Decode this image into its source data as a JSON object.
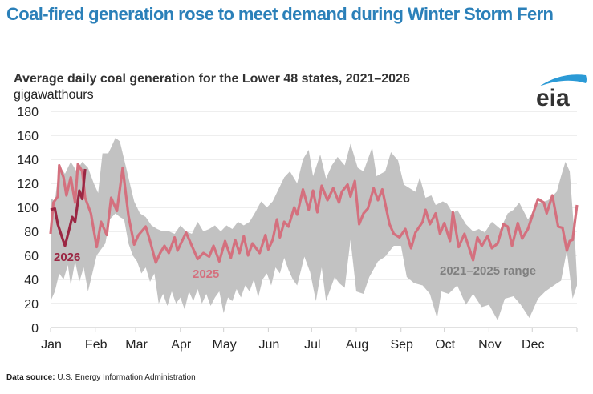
{
  "title": "Coal-fired generation rose to meet demand during Winter Storm Fern",
  "logo_text": "eia",
  "source_label": "Data source:",
  "source_text": "U.S. Energy Information Administration",
  "colors": {
    "title": "#2b80b9",
    "series_2025": "#d4707e",
    "series_2026": "#9b2743",
    "range": "#c2c2c2",
    "grid": "#dcdcdc"
  },
  "chart_data": {
    "type": "line",
    "title": "Average daily coal generation for the Lower 48 states, 2021–2026",
    "ylabel": "gigawatthours",
    "xlabel": "",
    "x_unit": "day of year",
    "xlim": [
      0,
      365
    ],
    "ylim": [
      0,
      180
    ],
    "yticks": [
      0,
      20,
      40,
      60,
      80,
      100,
      120,
      140,
      160,
      180
    ],
    "grid": true,
    "xtick_labels": [
      {
        "label": "Jan",
        "day": 0
      },
      {
        "label": "Feb",
        "day": 31
      },
      {
        "label": "Mar",
        "day": 59
      },
      {
        "label": "Apr",
        "day": 90
      },
      {
        "label": "May",
        "day": 120
      },
      {
        "label": "Jun",
        "day": 151
      },
      {
        "label": "Jul",
        "day": 181
      },
      {
        "label": "Aug",
        "day": 212
      },
      {
        "label": "Sep",
        "day": 243
      },
      {
        "label": "Oct",
        "day": 273
      },
      {
        "label": "Nov",
        "day": 304
      },
      {
        "label": "Dec",
        "day": 334
      }
    ],
    "annotations": {
      "label_2026": "2026",
      "label_2025": "2025",
      "label_range": "2021–2025 range"
    },
    "range": {
      "name": "2021–2025 range",
      "upper": [
        [
          0,
          108
        ],
        [
          3,
          105
        ],
        [
          6,
          135
        ],
        [
          10,
          128
        ],
        [
          14,
          138
        ],
        [
          18,
          130
        ],
        [
          22,
          138
        ],
        [
          26,
          133
        ],
        [
          30,
          120
        ],
        [
          33,
          112
        ],
        [
          36,
          145
        ],
        [
          40,
          145
        ],
        [
          42,
          150
        ],
        [
          45,
          158
        ],
        [
          48,
          155
        ],
        [
          52,
          135
        ],
        [
          55,
          120
        ],
        [
          58,
          105
        ],
        [
          62,
          95
        ],
        [
          66,
          92
        ],
        [
          70,
          85
        ],
        [
          74,
          82
        ],
        [
          78,
          80
        ],
        [
          82,
          80
        ],
        [
          86,
          78
        ],
        [
          90,
          85
        ],
        [
          94,
          80
        ],
        [
          98,
          78
        ],
        [
          102,
          88
        ],
        [
          106,
          80
        ],
        [
          110,
          82
        ],
        [
          114,
          85
        ],
        [
          118,
          80
        ],
        [
          122,
          85
        ],
        [
          126,
          82
        ],
        [
          130,
          88
        ],
        [
          134,
          85
        ],
        [
          138,
          88
        ],
        [
          142,
          96
        ],
        [
          146,
          105
        ],
        [
          150,
          100
        ],
        [
          154,
          105
        ],
        [
          158,
          115
        ],
        [
          162,
          125
        ],
        [
          166,
          130
        ],
        [
          171,
          120
        ],
        [
          175,
          140
        ],
        [
          179,
          148
        ],
        [
          182,
          126
        ],
        [
          187,
          144
        ],
        [
          191,
          124
        ],
        [
          195,
          135
        ],
        [
          199,
          142
        ],
        [
          204,
          135
        ],
        [
          208,
          153
        ],
        [
          213,
          133
        ],
        [
          217,
          130
        ],
        [
          223,
          150
        ],
        [
          226,
          126
        ],
        [
          232,
          130
        ],
        [
          236,
          146
        ],
        [
          241,
          139
        ],
        [
          245,
          119
        ],
        [
          249,
          116
        ],
        [
          253,
          113
        ],
        [
          256,
          125
        ],
        [
          260,
          108
        ],
        [
          264,
          110
        ],
        [
          267,
          102
        ],
        [
          272,
          105
        ],
        [
          275,
          103
        ],
        [
          279,
          95
        ],
        [
          282,
          98
        ],
        [
          288,
          86
        ],
        [
          293,
          80
        ],
        [
          297,
          82
        ],
        [
          301,
          79
        ],
        [
          306,
          88
        ],
        [
          312,
          82
        ],
        [
          317,
          95
        ],
        [
          321,
          98
        ],
        [
          325,
          104
        ],
        [
          331,
          90
        ],
        [
          338,
          103
        ],
        [
          345,
          106
        ],
        [
          351,
          113
        ],
        [
          354,
          126
        ],
        [
          357,
          138
        ],
        [
          360,
          130
        ],
        [
          364,
          64
        ],
        [
          365,
          41
        ]
      ],
      "lower": [
        [
          0,
          22
        ],
        [
          3,
          30
        ],
        [
          6,
          45
        ],
        [
          9,
          40
        ],
        [
          12,
          52
        ],
        [
          14,
          35
        ],
        [
          17,
          55
        ],
        [
          20,
          38
        ],
        [
          23,
          50
        ],
        [
          26,
          30
        ],
        [
          29,
          45
        ],
        [
          32,
          60
        ],
        [
          35,
          65
        ],
        [
          38,
          70
        ],
        [
          41,
          90
        ],
        [
          45,
          95
        ],
        [
          48,
          92
        ],
        [
          51,
          90
        ],
        [
          54,
          70
        ],
        [
          57,
          60
        ],
        [
          60,
          55
        ],
        [
          63,
          45
        ],
        [
          66,
          50
        ],
        [
          69,
          38
        ],
        [
          72,
          45
        ],
        [
          75,
          20
        ],
        [
          78,
          28
        ],
        [
          81,
          18
        ],
        [
          84,
          30
        ],
        [
          87,
          20
        ],
        [
          90,
          25
        ],
        [
          93,
          15
        ],
        [
          96,
          30
        ],
        [
          99,
          22
        ],
        [
          102,
          32
        ],
        [
          105,
          20
        ],
        [
          108,
          28
        ],
        [
          111,
          18
        ],
        [
          114,
          25
        ],
        [
          117,
          30
        ],
        [
          120,
          12
        ],
        [
          123,
          25
        ],
        [
          126,
          22
        ],
        [
          129,
          32
        ],
        [
          132,
          25
        ],
        [
          135,
          35
        ],
        [
          138,
          30
        ],
        [
          141,
          40
        ],
        [
          144,
          25
        ],
        [
          147,
          40
        ],
        [
          150,
          45
        ],
        [
          153,
          35
        ],
        [
          156,
          50
        ],
        [
          159,
          45
        ],
        [
          162,
          58
        ],
        [
          165,
          48
        ],
        [
          168,
          40
        ],
        [
          171,
          35
        ],
        [
          176,
          59
        ],
        [
          180,
          46
        ],
        [
          184,
          22
        ],
        [
          188,
          50
        ],
        [
          191,
          22
        ],
        [
          197,
          42
        ],
        [
          200,
          37
        ],
        [
          204,
          33
        ],
        [
          208,
          73
        ],
        [
          212,
          30
        ],
        [
          217,
          28
        ],
        [
          221,
          42
        ],
        [
          227,
          55
        ],
        [
          232,
          59
        ],
        [
          238,
          68
        ],
        [
          243,
          68
        ],
        [
          247,
          42
        ],
        [
          252,
          37
        ],
        [
          258,
          35
        ],
        [
          263,
          28
        ],
        [
          268,
          8
        ],
        [
          271,
          30
        ],
        [
          276,
          28
        ],
        [
          282,
          35
        ],
        [
          288,
          19
        ],
        [
          293,
          28
        ],
        [
          299,
          17
        ],
        [
          304,
          19
        ],
        [
          310,
          6
        ],
        [
          315,
          24
        ],
        [
          321,
          26
        ],
        [
          326,
          19
        ],
        [
          332,
          8
        ],
        [
          338,
          24
        ],
        [
          343,
          30
        ],
        [
          349,
          35
        ],
        [
          354,
          39
        ],
        [
          358,
          64
        ],
        [
          362,
          24
        ],
        [
          365,
          35
        ]
      ]
    },
    "series": [
      {
        "name": "2025",
        "points": [
          [
            0,
            78
          ],
          [
            2,
            104
          ],
          [
            5,
            109
          ],
          [
            6,
            135
          ],
          [
            9,
            125
          ],
          [
            11,
            110
          ],
          [
            14,
            125
          ],
          [
            17,
            104
          ],
          [
            19,
            136
          ],
          [
            22,
            130
          ],
          [
            24,
            108
          ],
          [
            28,
            95
          ],
          [
            32,
            67
          ],
          [
            35,
            88
          ],
          [
            39,
            77
          ],
          [
            42,
            108
          ],
          [
            46,
            97
          ],
          [
            50,
            133
          ],
          [
            54,
            93
          ],
          [
            58,
            69
          ],
          [
            61,
            77
          ],
          [
            66,
            84
          ],
          [
            69,
            72
          ],
          [
            73,
            54
          ],
          [
            76,
            62
          ],
          [
            79,
            68
          ],
          [
            82,
            62
          ],
          [
            86,
            75
          ],
          [
            88,
            64
          ],
          [
            94,
            79
          ],
          [
            98,
            68
          ],
          [
            102,
            57
          ],
          [
            106,
            62
          ],
          [
            110,
            59
          ],
          [
            113,
            68
          ],
          [
            117,
            55
          ],
          [
            121,
            72
          ],
          [
            125,
            58
          ],
          [
            128,
            73
          ],
          [
            131,
            62
          ],
          [
            134,
            76
          ],
          [
            137,
            60
          ],
          [
            140,
            70
          ],
          [
            145,
            62
          ],
          [
            149,
            77
          ],
          [
            151,
            65
          ],
          [
            154,
            73
          ],
          [
            157,
            90
          ],
          [
            159,
            75
          ],
          [
            162,
            88
          ],
          [
            165,
            84
          ],
          [
            169,
            100
          ],
          [
            171,
            94
          ],
          [
            175,
            115
          ],
          [
            179,
            98
          ],
          [
            182,
            114
          ],
          [
            185,
            96
          ],
          [
            188,
            118
          ],
          [
            192,
            106
          ],
          [
            196,
            116
          ],
          [
            200,
            104
          ],
          [
            202,
            113
          ],
          [
            206,
            119
          ],
          [
            208,
            109
          ],
          [
            211,
            122
          ],
          [
            214,
            86
          ],
          [
            217,
            95
          ],
          [
            220,
            99
          ],
          [
            224,
            116
          ],
          [
            227,
            106
          ],
          [
            230,
            115
          ],
          [
            235,
            86
          ],
          [
            238,
            78
          ],
          [
            242,
            75
          ],
          [
            246,
            82
          ],
          [
            250,
            66
          ],
          [
            253,
            79
          ],
          [
            258,
            88
          ],
          [
            260,
            98
          ],
          [
            263,
            86
          ],
          [
            267,
            95
          ],
          [
            270,
            78
          ],
          [
            273,
            87
          ],
          [
            277,
            72
          ],
          [
            279,
            96
          ],
          [
            283,
            67
          ],
          [
            287,
            78
          ],
          [
            293,
            56
          ],
          [
            296,
            75
          ],
          [
            299,
            68
          ],
          [
            303,
            76
          ],
          [
            306,
            66
          ],
          [
            310,
            70
          ],
          [
            314,
            86
          ],
          [
            317,
            84
          ],
          [
            320,
            68
          ],
          [
            324,
            87
          ],
          [
            327,
            74
          ],
          [
            331,
            82
          ],
          [
            336,
            100
          ],
          [
            338,
            107
          ],
          [
            342,
            104
          ],
          [
            344,
            95
          ],
          [
            348,
            110
          ],
          [
            352,
            84
          ],
          [
            355,
            83
          ],
          [
            358,
            64
          ],
          [
            360,
            72
          ],
          [
            362,
            73
          ],
          [
            365,
            102
          ]
        ]
      },
      {
        "name": "2026",
        "points": [
          [
            0,
            98
          ],
          [
            3,
            99
          ],
          [
            5,
            86
          ],
          [
            8,
            75
          ],
          [
            10,
            68
          ],
          [
            13,
            82
          ],
          [
            15,
            92
          ],
          [
            17,
            88
          ],
          [
            20,
            114
          ],
          [
            22,
            107
          ],
          [
            24,
            132
          ]
        ]
      }
    ]
  }
}
